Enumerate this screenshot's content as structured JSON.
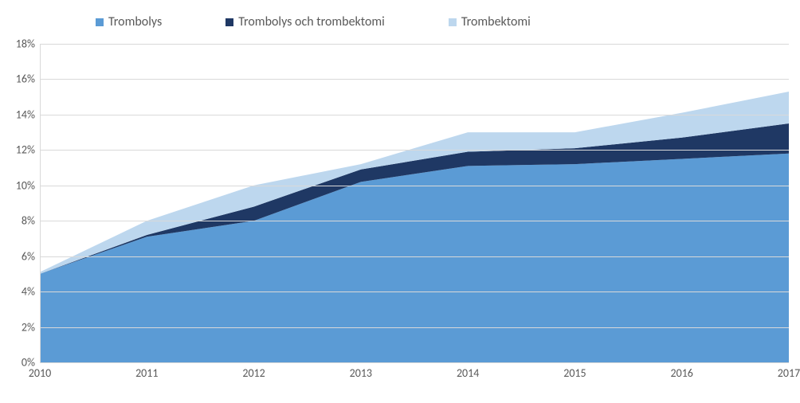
{
  "chart": {
    "type": "area-stacked",
    "background_color": "#ffffff",
    "grid_color": "#d9d9d9",
    "text_color": "#595959",
    "label_fontsize": 14,
    "legend_fontsize": 16,
    "x": {
      "categories": [
        "2010",
        "2011",
        "2012",
        "2013",
        "2014",
        "2015",
        "2016",
        "2017"
      ]
    },
    "y": {
      "min": 0,
      "max": 18,
      "tick_step": 2,
      "ticks": [
        "0%",
        "2%",
        "4%",
        "6%",
        "8%",
        "10%",
        "12%",
        "14%",
        "16%",
        "18%"
      ]
    },
    "series": [
      {
        "name": "Trombolys",
        "color": "#5b9bd5",
        "values": [
          5.0,
          7.1,
          8.0,
          10.2,
          11.1,
          11.2,
          11.5,
          11.8
        ]
      },
      {
        "name": "Trombolys och trombektomi",
        "color": "#1f3864",
        "values": [
          0.0,
          0.1,
          0.8,
          0.7,
          0.8,
          0.9,
          1.2,
          1.7
        ]
      },
      {
        "name": "Trombektomi",
        "color": "#bdd7ee",
        "values": [
          0.1,
          0.8,
          1.2,
          0.3,
          1.1,
          0.9,
          1.4,
          1.8
        ]
      }
    ]
  }
}
